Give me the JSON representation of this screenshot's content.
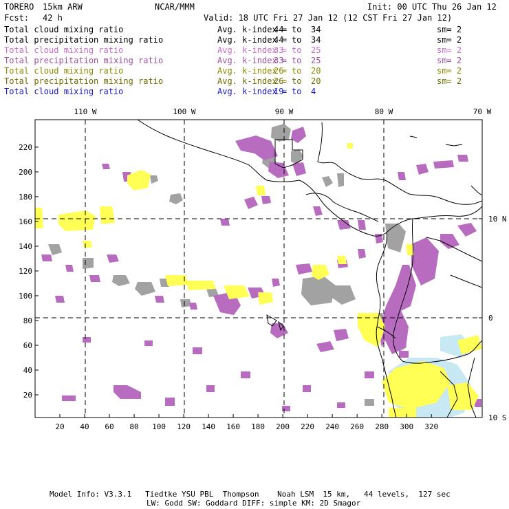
{
  "header": {
    "model": "TORERO",
    "config": "15km ARW",
    "org": "NCAR/MMM",
    "init": "Init: 00 UTC Thu 26 Jan 12",
    "fcst_label": "Fcst:",
    "fcst_value": "42 h",
    "valid": "Valid: 18 UTC Fri 27 Jan 12 (12 CST Fri 27 Jan 12)"
  },
  "legend": [
    {
      "name": "Total cloud mixing ratio",
      "label": "Avg. k-index =",
      "max": "44",
      "to": "to",
      "min": "34",
      "sm": "sm= 2",
      "color": "#000000"
    },
    {
      "name": "Total precipitation mixing ratio",
      "label": "Avg. k-index =",
      "max": "44",
      "to": "to",
      "min": "34",
      "sm": "sm= 2",
      "color": "#000000"
    },
    {
      "name": "Total cloud mixing ratio",
      "label": "Avg. k-index =",
      "max": "33",
      "to": "to",
      "min": "25",
      "sm": "sm= 2",
      "color": "#c36ec8"
    },
    {
      "name": "Total precipitation mixing ratio",
      "label": "Avg. k-index =",
      "max": "33",
      "to": "to",
      "min": "25",
      "sm": "sm= 2",
      "color": "#9a52a0"
    },
    {
      "name": "Total cloud mixing ratio",
      "label": "Avg. k-index =",
      "max": "26",
      "to": "to",
      "min": "20",
      "sm": "sm= 2",
      "color": "#8a8a00"
    },
    {
      "name": "Total precipitation mixing ratio",
      "label": "Avg. k-index =",
      "max": "26",
      "to": "to",
      "min": "20",
      "sm": "sm= 2",
      "color": "#6d6d00"
    },
    {
      "name": "Total cloud mixing ratio",
      "label": "Avg. k-index =",
      "max": "19",
      "to": "to",
      "min": "4",
      "sm": "",
      "color": "#1818c8"
    }
  ],
  "map": {
    "top_lon_labels": [
      "110 W",
      "100 W",
      "90 W",
      "80 W",
      "70 W"
    ],
    "right_lat_labels": [
      "10 N",
      "0",
      "10 S"
    ],
    "y_ticks": [
      "220",
      "200",
      "180",
      "160",
      "140",
      "120",
      "100",
      "80",
      "60",
      "40",
      "20"
    ],
    "x_ticks": [
      "20",
      "40",
      "60",
      "80",
      "100",
      "120",
      "140",
      "160",
      "180",
      "200",
      "220",
      "240",
      "260",
      "280",
      "300",
      "320"
    ],
    "colors": {
      "cloud_high": "#a0a0a0",
      "cloud_mid": "#b86cc0",
      "cloud_low": "#ffff55",
      "cloud_vlow": "#c8e8f4",
      "coastline": "#000000"
    }
  },
  "footer": {
    "line1": "Model Info: V3.3.1   Tiedtke YSU PBL  Thompson    Noah LSM  15 km,   44 levels,  127 sec",
    "line2": "LW: Godd SW: Goddard DIFF: simple KM: 2D Smagor"
  }
}
